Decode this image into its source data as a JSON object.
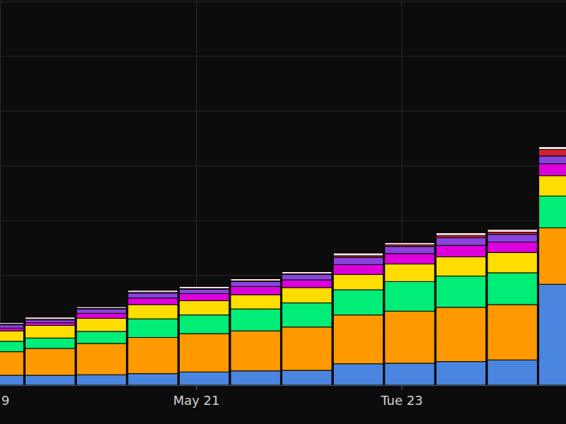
{
  "chart_data": {
    "type": "bar",
    "stacked": true,
    "grid": true,
    "tick_labels": "x",
    "categories": [
      "9",
      null,
      null,
      null,
      "May 21",
      null,
      null,
      null,
      "Tue 23",
      null,
      null,
      null
    ],
    "ylim": [
      0,
      700
    ],
    "yticks": [
      0,
      100,
      200,
      300,
      400,
      500,
      600,
      700
    ],
    "series": [
      {
        "color": "#4a86e0",
        "values": [
          18,
          18,
          19,
          21,
          24,
          26,
          27,
          39,
          40,
          43,
          46,
          184
        ]
      },
      {
        "color": "#ff9900",
        "values": [
          43,
          49,
          57,
          66,
          70,
          73,
          79,
          89,
          95,
          99,
          101,
          103
        ]
      },
      {
        "color": "#00ee77",
        "values": [
          19,
          19,
          22,
          34,
          34,
          40,
          44,
          46,
          54,
          57,
          58,
          58
        ]
      },
      {
        "color": "#ffdd00",
        "values": [
          19,
          23,
          24,
          26,
          26,
          26,
          28,
          28,
          32,
          35,
          37,
          37
        ]
      },
      {
        "color": "#dd00dd",
        "values": [
          5,
          5,
          9,
          12,
          13,
          15,
          14,
          18,
          19,
          21,
          19,
          22
        ]
      },
      {
        "color": "#8844dd",
        "values": [
          6,
          5,
          8,
          9,
          8,
          9,
          10,
          13,
          13,
          14,
          14,
          14
        ]
      },
      {
        "color": "#cc2233",
        "values": [
          1,
          1,
          1,
          1,
          1,
          1,
          1,
          3,
          3,
          4,
          4,
          12
        ]
      },
      {
        "color": "#ffe0e8",
        "values": [
          3,
          4,
          3,
          4,
          4,
          4,
          4,
          5,
          4,
          5,
          5,
          5
        ]
      }
    ]
  }
}
